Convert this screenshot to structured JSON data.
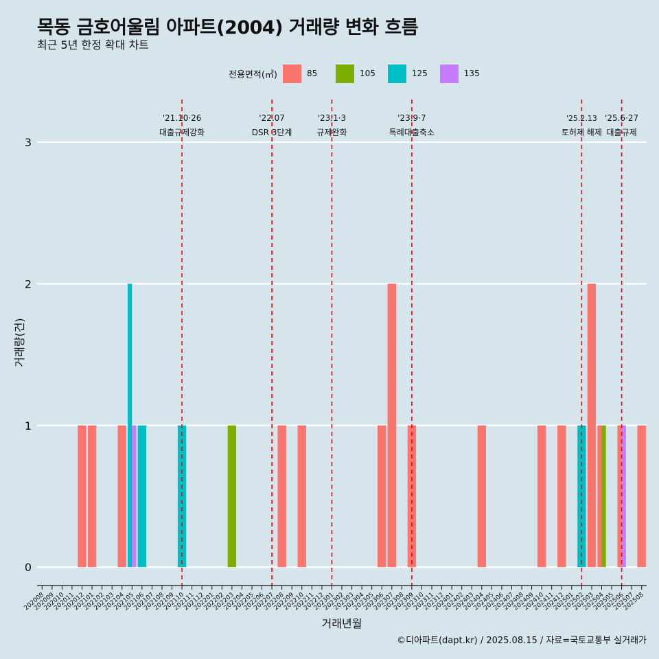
{
  "chart_data": {
    "type": "bar",
    "title": "목동 금호어울림 아파트(2004) 거래량 변화 흐름",
    "subtitle": "최근 5년 한정 확대 차트",
    "xlabel": "거래년월",
    "ylabel": "거래량(건)",
    "ylim": [
      -0.13,
      3.3
    ],
    "yticks": [
      0,
      1,
      2,
      3
    ],
    "legend": {
      "title": "전용면적(㎡)",
      "position": "top"
    },
    "caption": "©디아파트(dapt.kr) / 2025.08.15 / 자료=국토교통부 실거래가",
    "categories": [
      "202008",
      "202009",
      "202010",
      "202011",
      "202012",
      "202101",
      "202102",
      "202103",
      "202104",
      "202105",
      "202106",
      "202107",
      "202108",
      "202109",
      "202110",
      "202111",
      "202112",
      "202201",
      "202202",
      "202203",
      "202204",
      "202205",
      "202206",
      "202207",
      "202208",
      "202209",
      "202210",
      "202211",
      "202212",
      "202301",
      "202302",
      "202303",
      "202304",
      "202305",
      "202306",
      "202307",
      "202308",
      "202309",
      "202310",
      "202311",
      "202312",
      "202401",
      "202402",
      "202403",
      "202404",
      "202405",
      "202406",
      "202407",
      "202408",
      "202409",
      "202410",
      "202411",
      "202412",
      "202501",
      "202502",
      "202503",
      "202504",
      "202505",
      "202506",
      "202507",
      "202508"
    ],
    "series": [
      {
        "name": "85",
        "color": "#f8766d",
        "values": [
          0,
          0,
          0,
          0,
          1,
          1,
          0,
          0,
          1,
          0,
          0,
          0,
          0,
          0,
          0,
          0,
          0,
          0,
          0,
          0,
          0,
          0,
          0,
          0,
          1,
          0,
          1,
          0,
          0,
          0,
          0,
          0,
          0,
          0,
          1,
          2,
          0,
          1,
          0,
          0,
          0,
          0,
          0,
          0,
          1,
          0,
          0,
          0,
          0,
          0,
          1,
          0,
          1,
          0,
          0,
          2,
          1,
          0,
          1,
          0,
          1
        ]
      },
      {
        "name": "105",
        "color": "#7cae00",
        "values": [
          0,
          0,
          0,
          0,
          0,
          0,
          0,
          0,
          0,
          0,
          0,
          0,
          0,
          0,
          0,
          0,
          0,
          0,
          0,
          1,
          0,
          0,
          0,
          0,
          0,
          0,
          0,
          0,
          0,
          0,
          0,
          0,
          0,
          0,
          0,
          0,
          0,
          0,
          0,
          0,
          0,
          0,
          0,
          0,
          0,
          0,
          0,
          0,
          0,
          0,
          0,
          0,
          0,
          0,
          0,
          0,
          1,
          0,
          0,
          0,
          0
        ]
      },
      {
        "name": "125",
        "color": "#00bfc4",
        "values": [
          0,
          0,
          0,
          0,
          0,
          0,
          0,
          0,
          0,
          2,
          1,
          0,
          0,
          0,
          1,
          0,
          0,
          0,
          0,
          0,
          0,
          0,
          0,
          0,
          0,
          0,
          0,
          0,
          0,
          0,
          0,
          0,
          0,
          0,
          0,
          0,
          0,
          0,
          0,
          0,
          0,
          0,
          0,
          0,
          0,
          0,
          0,
          0,
          0,
          0,
          0,
          0,
          0,
          0,
          1,
          0,
          0,
          0,
          0,
          0,
          0
        ]
      },
      {
        "name": "135",
        "color": "#c77cff",
        "values": [
          0,
          0,
          0,
          0,
          0,
          0,
          0,
          0,
          0,
          1,
          0,
          0,
          0,
          0,
          0,
          0,
          0,
          0,
          0,
          0,
          0,
          0,
          0,
          0,
          0,
          0,
          0,
          0,
          0,
          0,
          0,
          0,
          0,
          0,
          0,
          0,
          0,
          0,
          0,
          0,
          0,
          0,
          0,
          0,
          0,
          0,
          0,
          0,
          0,
          0,
          0,
          0,
          0,
          0,
          0,
          0,
          0,
          0,
          1,
          0,
          0
        ]
      }
    ],
    "events": [
      {
        "month": "202110",
        "date": "'21.10·26",
        "label": "대출규제강화"
      },
      {
        "month": "202207",
        "date": "'22.07",
        "label": "DSR 3단계"
      },
      {
        "month": "202301",
        "date": "'23.1·3",
        "label": "규제완화"
      },
      {
        "month": "202309",
        "date": "'23.9·7",
        "label": "특례대출축소"
      },
      {
        "month": "202502",
        "date": "'25.2.13",
        "label": "토허제 해제"
      },
      {
        "month": "202506",
        "date": "'25.6·27",
        "label": "대출규제"
      }
    ],
    "event_line_color": "#ff0000"
  }
}
